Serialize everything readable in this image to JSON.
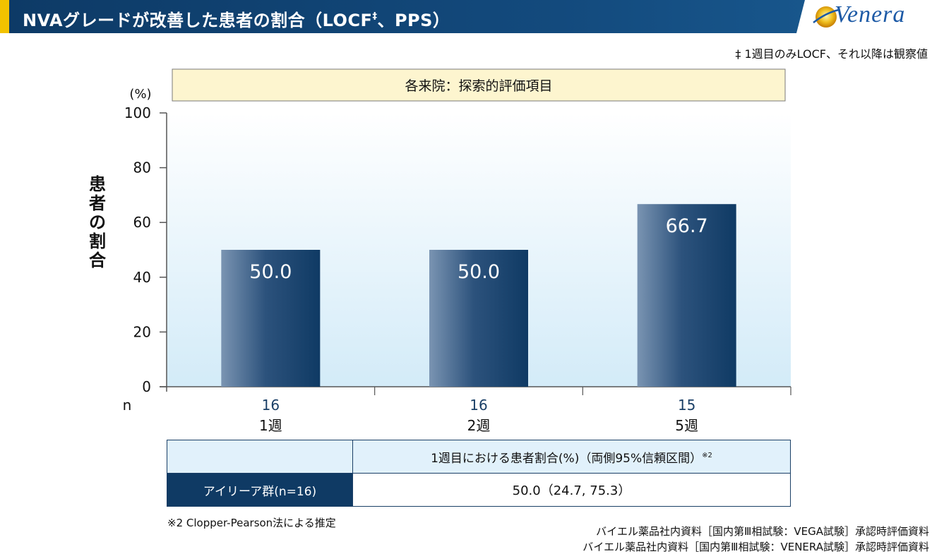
{
  "header": {
    "title": "NVAグレードが改善した患者の割合（LOCF",
    "title_sup": "‡",
    "title_tail": "、PPS）",
    "logo_text": "Venera",
    "accent_color": "#f2c200"
  },
  "footnote_top": "‡ 1週目のみLOCF、それ以降は観察値",
  "chart_data": {
    "type": "bar",
    "title": "各来院：探索的評価項目",
    "unit_label": "(%)",
    "ylabel": "患者の割合",
    "ylim": [
      0,
      100
    ],
    "yticks": [
      0,
      20,
      40,
      60,
      80,
      100
    ],
    "categories": [
      "1週",
      "2週",
      "5週"
    ],
    "values": [
      50.0,
      50.0,
      66.7
    ],
    "value_labels": [
      "50.0",
      "50.0",
      "66.7"
    ],
    "n_label": "n",
    "n_values": [
      "16",
      "16",
      "15"
    ],
    "bar_color": "#1a3f66",
    "title_box_color": "#fdf5cf"
  },
  "table": {
    "col_header": "1週目における患者割合(%)（両側95%信頼区間）",
    "col_header_sup": "※2",
    "row_header": "アイリーア群(n=16)",
    "value": "50.0（24.7, 75.3）"
  },
  "note_bottom": "※2  Clopper-Pearson法による推定",
  "sources": [
    "バイエル薬品社内資料［国内第Ⅲ相試験：VEGA試験］承認時評価資料",
    "バイエル薬品社内資料［国内第Ⅲ相試験：VENERA試験］承認時評価資料"
  ]
}
